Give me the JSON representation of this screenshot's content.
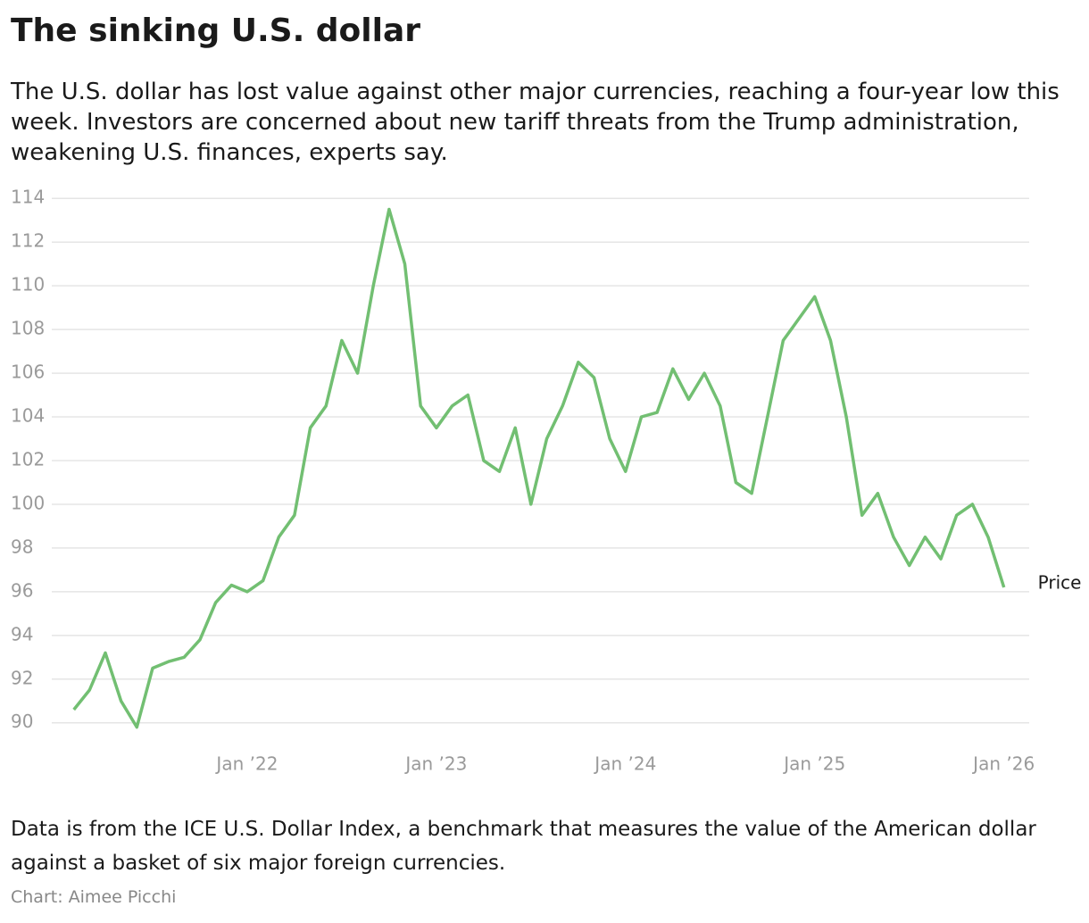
{
  "chart_data": {
    "type": "line",
    "title": "The sinking U.S. dollar",
    "subtitle": "The U.S. dollar has lost value against other major currencies, reaching a four-year low this week. Investors are concerned about new tariff threats from the Trump administration, weakening U.S. finances, experts say.",
    "note": "Data is from the ICE U.S. Dollar Index, a benchmark that measures the value of the American dollar against a basket of six major foreign currencies.",
    "credit": "Chart: Aimee Picchi",
    "x": [
      "2021-02",
      "2021-03",
      "2021-04",
      "2021-05",
      "2021-06",
      "2021-07",
      "2021-08",
      "2021-09",
      "2021-10",
      "2021-11",
      "2021-12",
      "2022-01",
      "2022-02",
      "2022-03",
      "2022-04",
      "2022-05",
      "2022-06",
      "2022-07",
      "2022-08",
      "2022-09",
      "2022-10",
      "2022-11",
      "2022-12",
      "2023-01",
      "2023-02",
      "2023-03",
      "2023-04",
      "2023-05",
      "2023-06",
      "2023-07",
      "2023-08",
      "2023-09",
      "2023-10",
      "2023-11",
      "2023-12",
      "2024-01",
      "2024-02",
      "2024-03",
      "2024-04",
      "2024-05",
      "2024-06",
      "2024-07",
      "2024-08",
      "2024-09",
      "2024-10",
      "2024-11",
      "2024-12",
      "2025-01",
      "2025-02",
      "2025-03",
      "2025-04",
      "2025-05",
      "2025-06",
      "2025-07",
      "2025-08",
      "2025-09",
      "2025-10",
      "2025-11",
      "2025-12",
      "2026-01"
    ],
    "series": [
      {
        "name": "Price",
        "color": "#72bf72",
        "values": [
          90.6,
          91.5,
          93.2,
          91.0,
          89.8,
          92.5,
          92.8,
          93.0,
          93.8,
          95.5,
          96.3,
          96.0,
          96.5,
          98.5,
          99.5,
          103.5,
          104.5,
          107.5,
          106.0,
          110.0,
          113.5,
          111.0,
          104.5,
          103.5,
          104.5,
          105.0,
          102.0,
          101.5,
          103.5,
          100.0,
          103.0,
          104.5,
          106.5,
          105.8,
          103.0,
          101.5,
          104.0,
          104.2,
          106.2,
          104.8,
          106.0,
          104.5,
          101.0,
          100.5,
          104.0,
          107.5,
          108.5,
          109.5,
          107.5,
          104.0,
          99.5,
          100.5,
          98.5,
          97.2,
          98.5,
          97.5,
          99.5,
          100.0,
          98.5,
          96.2
        ]
      }
    ],
    "xlim": [
      "2021-01",
      "2026-03"
    ],
    "xticks": [
      {
        "value": "2022-01",
        "label": "Jan ’22"
      },
      {
        "value": "2023-01",
        "label": "Jan ’23"
      },
      {
        "value": "2024-01",
        "label": "Jan ’24"
      },
      {
        "value": "2025-01",
        "label": "Jan ’25"
      },
      {
        "value": "2026-01",
        "label": "Jan ’26"
      }
    ],
    "ylim": [
      88.6,
      114.5
    ],
    "yticks": [
      90,
      92,
      94,
      96,
      98,
      100,
      102,
      104,
      106,
      108,
      110,
      112,
      114
    ],
    "grid": true
  }
}
